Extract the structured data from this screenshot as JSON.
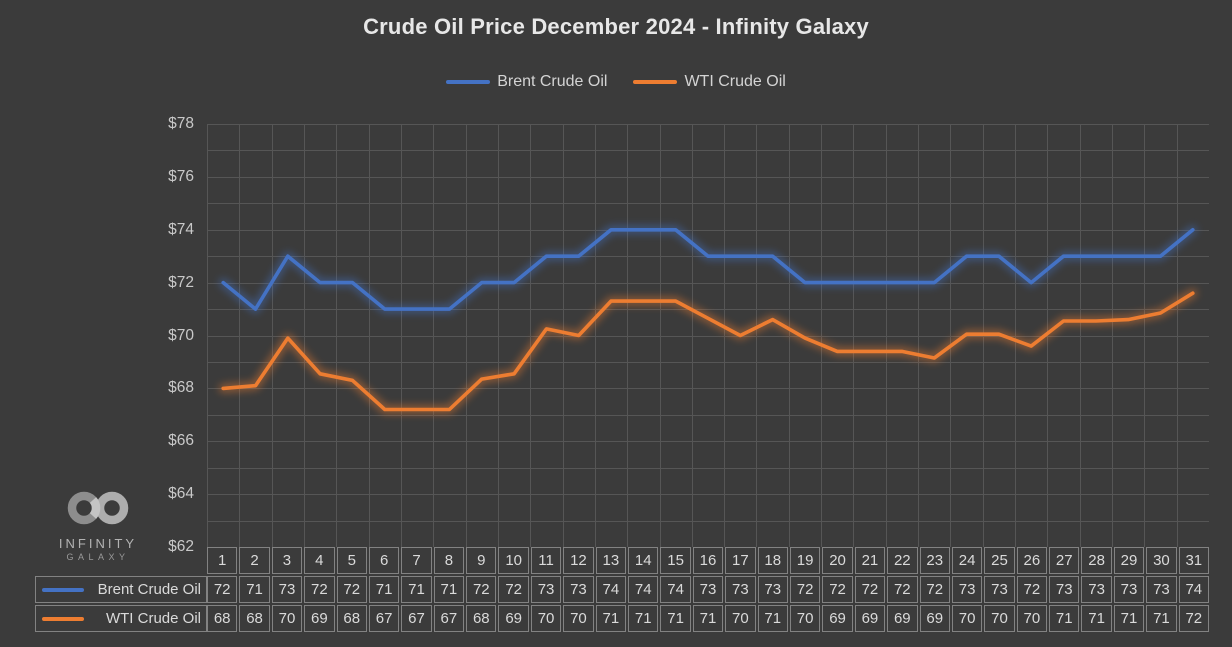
{
  "header": {
    "title": "Crude Oil Price December 2024 - Infinity Galaxy"
  },
  "legend": {
    "items": [
      {
        "label": "Brent Crude Oil",
        "color": "#4472C4"
      },
      {
        "label": "WTI Crude Oil",
        "color": "#ED7D31"
      }
    ]
  },
  "logo": {
    "icon": "infinity-icon",
    "line1": "INFINITY",
    "line2": "GALAXY"
  },
  "colors": {
    "background": "#3b3b3b",
    "gridline": "#565656",
    "table_border": "#828282",
    "text_light": "#dadada",
    "axis_text": "#c9c9c9"
  },
  "chart_data": {
    "type": "line",
    "title": "Crude Oil Price December 2024 - Infinity Galaxy",
    "xlabel": "",
    "ylabel": "",
    "x": [
      1,
      2,
      3,
      4,
      5,
      6,
      7,
      8,
      9,
      10,
      11,
      12,
      13,
      14,
      15,
      16,
      17,
      18,
      19,
      20,
      21,
      22,
      23,
      24,
      25,
      26,
      27,
      28,
      29,
      30,
      31
    ],
    "y_ticks": [
      "$78",
      "$76",
      "$74",
      "$72",
      "$70",
      "$68",
      "$66",
      "$64",
      "$62"
    ],
    "ylim": [
      62,
      78
    ],
    "y_minor_step": 1,
    "grid": true,
    "legend_position": "top",
    "data_table": true,
    "series": [
      {
        "name": "Brent Crude Oil",
        "color": "#4472C4",
        "values": [
          72,
          71,
          73,
          72,
          72,
          71,
          71,
          71,
          72,
          72,
          73,
          73,
          74,
          74,
          74,
          73,
          73,
          73,
          72,
          72,
          72,
          72,
          72,
          73,
          73,
          72,
          73,
          73,
          73,
          73,
          74
        ],
        "table_values": [
          72,
          71,
          73,
          72,
          72,
          71,
          71,
          71,
          72,
          72,
          73,
          73,
          74,
          74,
          74,
          73,
          73,
          73,
          72,
          72,
          72,
          72,
          72,
          73,
          73,
          72,
          73,
          73,
          73,
          73,
          74
        ]
      },
      {
        "name": "WTI Crude Oil",
        "color": "#ED7D31",
        "values": [
          68.0,
          68.1,
          69.9,
          68.55,
          68.3,
          67.2,
          67.2,
          67.2,
          68.35,
          68.55,
          70.25,
          70.0,
          71.3,
          71.3,
          71.3,
          70.65,
          70.0,
          70.6,
          69.9,
          69.4,
          69.4,
          69.4,
          69.15,
          70.05,
          70.05,
          69.6,
          70.55,
          70.55,
          70.6,
          70.85,
          71.6
        ],
        "table_values": [
          68,
          68,
          70,
          69,
          68,
          67,
          67,
          67,
          68,
          69,
          70,
          70,
          71,
          71,
          71,
          71,
          70,
          71,
          70,
          69,
          69,
          69,
          69,
          70,
          70,
          70,
          71,
          71,
          71,
          71,
          72
        ]
      }
    ]
  }
}
